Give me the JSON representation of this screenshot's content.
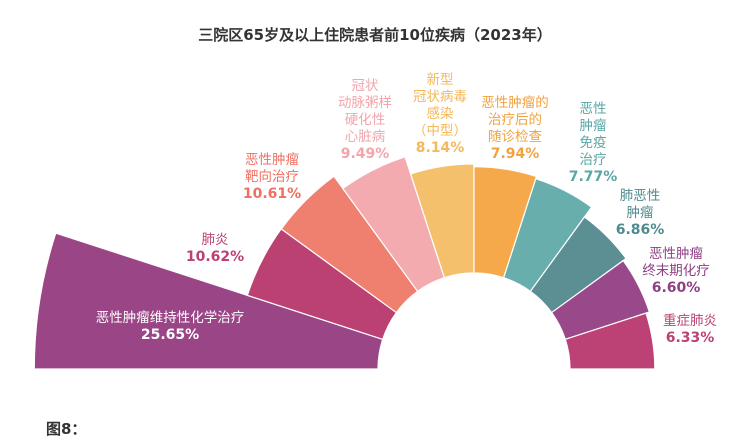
{
  "chart_data": {
    "type": "pie",
    "subtype": "half-rose",
    "title": "三院区65岁及以上住院患者前10位疾病（2023年）",
    "categories": [
      "恶性肿瘤维持性化学治疗",
      "肺炎",
      "恶性肿瘤靶向治疗",
      "冠状动脉粥样硬化性心脏病",
      "新型冠状病毒感染（中型）",
      "恶性肿瘤的治疗后的随诊检查",
      "恶性肿瘤免疫治疗",
      "肺恶性肿瘤",
      "恶性肿瘤终末期化疗",
      "重症肺炎"
    ],
    "label_lines": [
      [
        "恶性肿瘤维持性化学治疗"
      ],
      [
        "肺炎"
      ],
      [
        "恶性肿瘤",
        "靶向治疗"
      ],
      [
        "冠状",
        "动脉粥样",
        "硬化性",
        "心脏病"
      ],
      [
        "新型",
        "冠状病毒",
        "感染",
        "（中型）"
      ],
      [
        "恶性肿瘤的",
        "治疗后的",
        "随诊检查"
      ],
      [
        "恶性",
        "肿瘤",
        "免疫",
        "治疗"
      ],
      [
        "肺恶性",
        "肿瘤"
      ],
      [
        "恶性肿瘤",
        "终末期化疗"
      ],
      [
        "重症肺炎"
      ]
    ],
    "values": [
      25.65,
      10.62,
      10.61,
      9.49,
      8.14,
      7.94,
      7.77,
      6.86,
      6.6,
      6.33
    ],
    "value_labels": [
      "25.65%",
      "10.62%",
      "10.61%",
      "9.49%",
      "8.14%",
      "7.94%",
      "7.77%",
      "6.86%",
      "6.60%",
      "6.33%"
    ],
    "colors": [
      "#9a4585",
      "#bc4173",
      "#ef8070",
      "#f3abb0",
      "#f5c06c",
      "#f5a94a",
      "#67aead",
      "#5b8f93",
      "#99488a",
      "#bc4174"
    ],
    "label_colors": [
      "#ffffff",
      "#bc4173",
      "#ef6f62",
      "#f3a5ab",
      "#f5b85a",
      "#f2a23e",
      "#5aa6a5",
      "#4f8a8f",
      "#8f3f84",
      "#bc4174"
    ]
  },
  "caption": "图8："
}
